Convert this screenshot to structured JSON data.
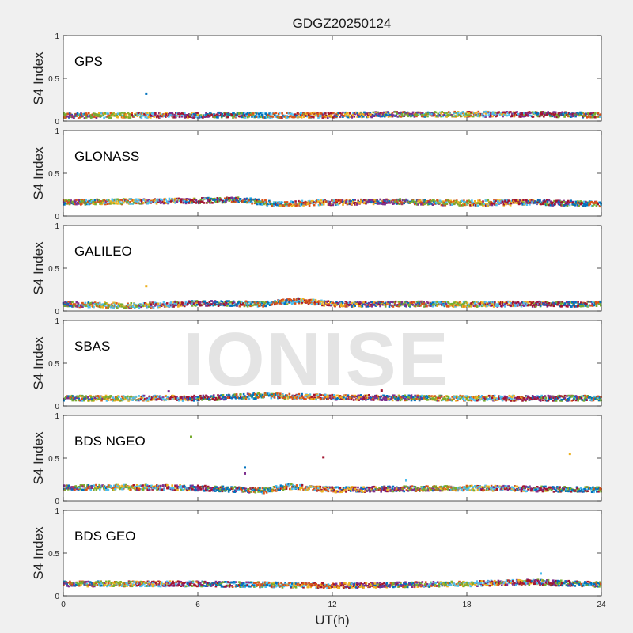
{
  "figure_title": "GDGZ20250124",
  "watermark": "IONISE",
  "chart_data": {
    "type": "scatter",
    "title": "GDGZ20250124",
    "xlabel": "UT(h)",
    "ylabel": "S4 Index",
    "xlim": [
      0,
      24
    ],
    "ylim": [
      0,
      1
    ],
    "x_ticks": [
      "0",
      "6",
      "12",
      "18",
      "24"
    ],
    "y_ticks": [
      "0",
      "0.5",
      "1"
    ],
    "series_colors": [
      "#0072BD",
      "#D95319",
      "#EDB120",
      "#7E2F8E",
      "#77AC30",
      "#4DBEEE",
      "#A2142F"
    ],
    "panels": [
      {
        "name": "GPS",
        "baseline_points": [
          [
            0,
            0.06
          ],
          [
            3,
            0.07
          ],
          [
            6,
            0.07
          ],
          [
            9,
            0.07
          ],
          [
            12,
            0.07
          ],
          [
            15,
            0.08
          ],
          [
            18,
            0.08
          ],
          [
            21,
            0.08
          ],
          [
            24,
            0.07
          ]
        ],
        "outliers": [
          [
            3.7,
            0.32
          ]
        ]
      },
      {
        "name": "GLONASS",
        "baseline_points": [
          [
            0,
            0.16
          ],
          [
            3,
            0.17
          ],
          [
            6,
            0.18
          ],
          [
            8,
            0.19
          ],
          [
            9.5,
            0.14
          ],
          [
            12,
            0.16
          ],
          [
            15,
            0.17
          ],
          [
            18,
            0.15
          ],
          [
            21,
            0.16
          ],
          [
            24,
            0.14
          ]
        ],
        "outliers": []
      },
      {
        "name": "GALILEO",
        "baseline_points": [
          [
            0,
            0.08
          ],
          [
            3,
            0.06
          ],
          [
            6,
            0.09
          ],
          [
            9,
            0.08
          ],
          [
            10.5,
            0.12
          ],
          [
            12,
            0.08
          ],
          [
            15,
            0.08
          ],
          [
            18,
            0.08
          ],
          [
            21,
            0.08
          ],
          [
            24,
            0.08
          ]
        ],
        "outliers": [
          [
            3.7,
            0.29
          ]
        ]
      },
      {
        "name": "SBAS",
        "baseline_points": [
          [
            0,
            0.09
          ],
          [
            6,
            0.09
          ],
          [
            9,
            0.12
          ],
          [
            12,
            0.1
          ],
          [
            18,
            0.09
          ],
          [
            24,
            0.09
          ]
        ],
        "outliers": [
          [
            4.7,
            0.17
          ],
          [
            14.2,
            0.18
          ]
        ]
      },
      {
        "name": "BDS NGEO",
        "baseline_points": [
          [
            0,
            0.15
          ],
          [
            3,
            0.16
          ],
          [
            6,
            0.15
          ],
          [
            9,
            0.12
          ],
          [
            10,
            0.17
          ],
          [
            12,
            0.13
          ],
          [
            15,
            0.14
          ],
          [
            18,
            0.15
          ],
          [
            21,
            0.14
          ],
          [
            24,
            0.13
          ]
        ],
        "outliers": [
          [
            5.7,
            0.75
          ],
          [
            8.1,
            0.39
          ],
          [
            8.1,
            0.32
          ],
          [
            11.6,
            0.51
          ],
          [
            22.6,
            0.55
          ],
          [
            15.3,
            0.24
          ]
        ]
      },
      {
        "name": "BDS GEO",
        "baseline_points": [
          [
            0,
            0.14
          ],
          [
            6,
            0.14
          ],
          [
            9,
            0.13
          ],
          [
            12,
            0.12
          ],
          [
            18,
            0.14
          ],
          [
            21,
            0.16
          ],
          [
            24,
            0.13
          ]
        ],
        "outliers": [
          [
            21.3,
            0.26
          ]
        ]
      }
    ]
  }
}
